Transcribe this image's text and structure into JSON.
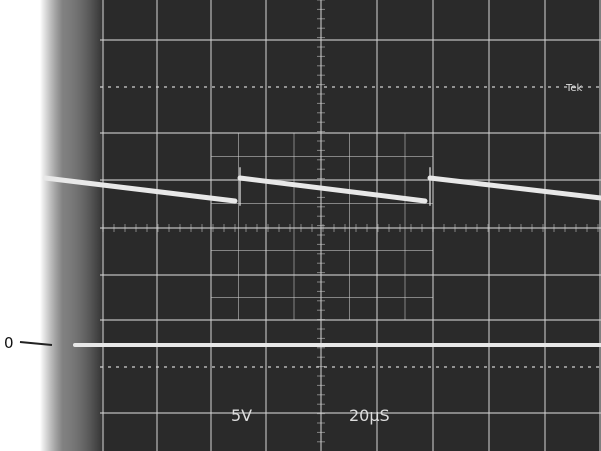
{
  "labels": {
    "zero": "0",
    "brand": "Tek",
    "volts": "5V",
    "time": "20μS"
  }
}
